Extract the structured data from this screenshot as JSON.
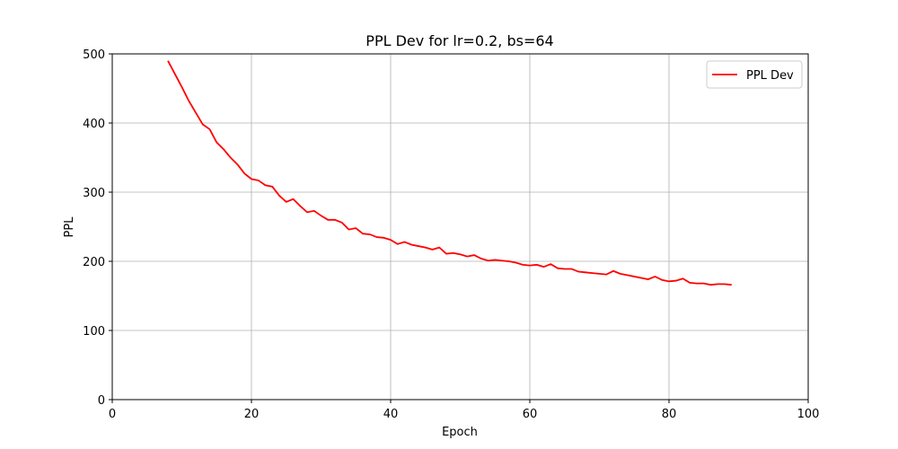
{
  "chart_data": {
    "type": "line",
    "title": "PPL Dev for lr=0.2, bs=64",
    "xlabel": "Epoch",
    "ylabel": "PPL",
    "x": [
      8,
      9,
      10,
      11,
      12,
      13,
      14,
      15,
      16,
      17,
      18,
      19,
      20,
      21,
      22,
      23,
      24,
      25,
      26,
      27,
      28,
      29,
      30,
      31,
      32,
      33,
      34,
      35,
      36,
      37,
      38,
      39,
      40,
      41,
      42,
      43,
      44,
      45,
      46,
      47,
      48,
      49,
      50,
      51,
      52,
      53,
      54,
      55,
      56,
      57,
      58,
      59,
      60,
      61,
      62,
      63,
      64,
      65,
      66,
      67,
      68,
      69,
      70,
      71,
      72,
      73,
      74,
      75,
      76,
      77,
      78,
      79,
      80,
      81,
      82,
      83,
      84,
      85,
      86,
      87,
      88,
      89
    ],
    "series": [
      {
        "name": "PPL Dev",
        "color": "red",
        "values": [
          490,
          471,
          452,
          432,
          415,
          398,
          391,
          372,
          362,
          350,
          340,
          327,
          319,
          317,
          310,
          308,
          295,
          286,
          290,
          280,
          271,
          273,
          266,
          260,
          260,
          256,
          246,
          248,
          240,
          239,
          235,
          234,
          231,
          225,
          228,
          224,
          222,
          220,
          217,
          220,
          211,
          212,
          210,
          207,
          209,
          204,
          201,
          202,
          201,
          200,
          198,
          195,
          194,
          195,
          192,
          196,
          190,
          189,
          189,
          185,
          184,
          183,
          182,
          181,
          186,
          182,
          180,
          178,
          176,
          174,
          178,
          173,
          171,
          172,
          175,
          169,
          168,
          168,
          166,
          167,
          167,
          166
        ]
      }
    ],
    "xlim": [
      0,
      100
    ],
    "ylim": [
      0,
      500
    ],
    "xticks": [
      0,
      20,
      40,
      60,
      80,
      100
    ],
    "yticks": [
      0,
      100,
      200,
      300,
      400,
      500
    ],
    "grid": true,
    "legend": "upper right"
  }
}
